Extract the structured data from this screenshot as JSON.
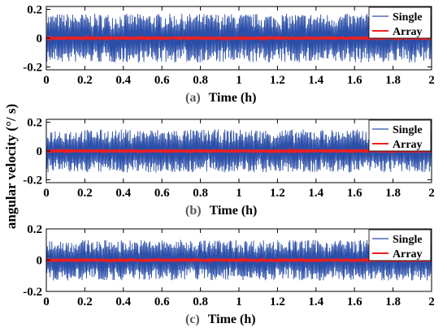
{
  "figure": {
    "ylabel": "angular velocity (°/ s)"
  },
  "chart_data": [
    {
      "type": "line",
      "panel_tag": "(a)",
      "xlabel": "Time (h)",
      "xlim": [
        0,
        2
      ],
      "ylim": [
        -0.22,
        0.22
      ],
      "x_ticks": [
        "0",
        "0.2",
        "0.4",
        "0.6",
        "0.8",
        "1",
        "1.2",
        "1.4",
        "1.6",
        "1.8",
        "2"
      ],
      "y_ticks": [
        "0.2",
        "0",
        "-0.2"
      ],
      "legend_position": "top-right",
      "series": [
        {
          "name": "Single",
          "color": "#2b4ea8",
          "band": [
            -0.17,
            0.17
          ]
        },
        {
          "name": "Array",
          "color": "#ee1f1f",
          "band": [
            -0.012,
            0.012
          ]
        }
      ]
    },
    {
      "type": "line",
      "panel_tag": "(b)",
      "xlabel": "Time (h)",
      "xlim": [
        0,
        2
      ],
      "ylim": [
        -0.22,
        0.22
      ],
      "x_ticks": [
        "0",
        "0.2",
        "0.4",
        "0.6",
        "0.8",
        "1",
        "1.2",
        "1.4",
        "1.6",
        "1.8",
        "2"
      ],
      "y_ticks": [
        "0.2",
        "0",
        "-0.2"
      ],
      "legend_position": "top-right",
      "series": [
        {
          "name": "Single",
          "color": "#2b4ea8",
          "band": [
            -0.15,
            0.15
          ]
        },
        {
          "name": "Array",
          "color": "#ee1f1f",
          "band": [
            -0.012,
            0.012
          ]
        }
      ]
    },
    {
      "type": "line",
      "panel_tag": "(c)",
      "xlabel": "Time (h)",
      "xlim": [
        0,
        2
      ],
      "ylim": [
        -0.2,
        0.2
      ],
      "x_ticks": [
        "0",
        "0.2",
        "0.4",
        "0.6",
        "0.8",
        "1",
        "1.2",
        "1.4",
        "1.6",
        "1.8",
        "2"
      ],
      "y_ticks": [
        "0.2",
        "0",
        "-0.2"
      ],
      "legend_position": "top-right",
      "series": [
        {
          "name": "Single",
          "color": "#2b4ea8",
          "band": [
            -0.13,
            0.13
          ]
        },
        {
          "name": "Array",
          "color": "#ee1f1f",
          "band": [
            -0.012,
            0.012
          ]
        }
      ]
    }
  ]
}
